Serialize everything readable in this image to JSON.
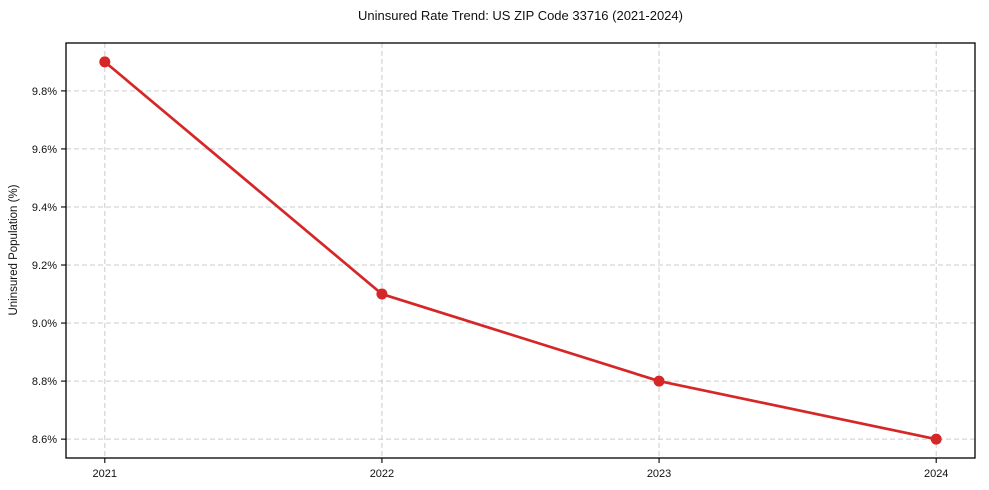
{
  "chart_data": {
    "type": "line",
    "title": "Uninsured Rate Trend: US ZIP Code 33716 (2021-2024)",
    "xlabel": "",
    "ylabel": "Uninsured Population (%)",
    "categories": [
      "2021",
      "2022",
      "2023",
      "2024"
    ],
    "x": [
      2021,
      2022,
      2023,
      2024
    ],
    "series": [
      {
        "name": "Uninsured rate",
        "values": [
          9.9,
          9.1,
          8.8,
          8.6
        ]
      }
    ],
    "value_unit": "%",
    "xlim": [
      2020.86,
      2024.14
    ],
    "ylim": [
      8.535,
      9.965
    ],
    "y_ticks": {
      "values": [
        8.6,
        8.8,
        9.0,
        9.2,
        9.4,
        9.6,
        9.8
      ],
      "labels": [
        "8.6%",
        "8.8%",
        "9.0%",
        "9.2%",
        "9.4%",
        "9.6%",
        "9.8%"
      ]
    },
    "grid": true,
    "legend": "none",
    "colors": {
      "line": "#d62728",
      "marker": "#d62728",
      "grid": "#cccccc",
      "axis": "#000000",
      "background": "#ffffff",
      "text": "#111111"
    }
  }
}
